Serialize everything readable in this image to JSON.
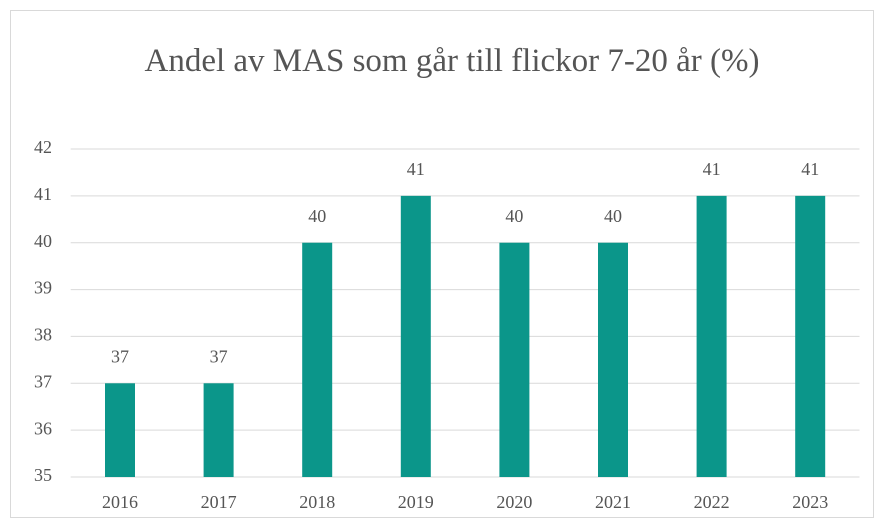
{
  "chart_data": {
    "type": "bar",
    "title": "Andel av MAS som går till flickor 7-20 år (%)",
    "categories": [
      "2016",
      "2017",
      "2018",
      "2019",
      "2020",
      "2021",
      "2022",
      "2023"
    ],
    "values": [
      37,
      37,
      40,
      41,
      40,
      40,
      41,
      41
    ],
    "color": "#0b968a",
    "ylim": [
      35,
      42
    ],
    "yticks": [
      35,
      36,
      37,
      38,
      39,
      40,
      41,
      42
    ],
    "grid": true
  }
}
